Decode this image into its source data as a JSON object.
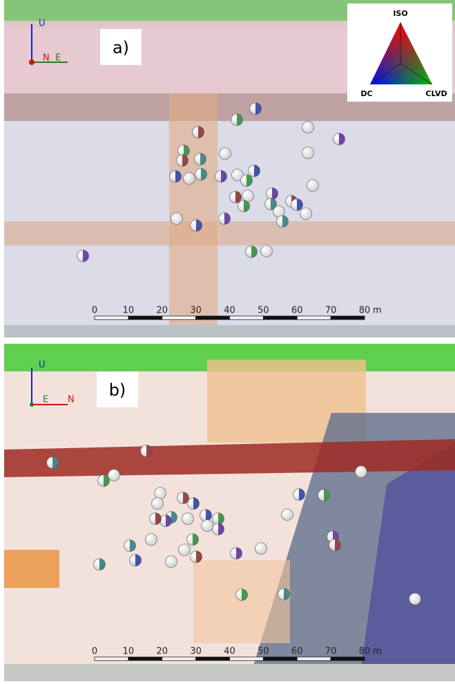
{
  "panels": [
    {
      "label": "a)",
      "axes": {
        "up": "U",
        "left": "N",
        "right": "E"
      },
      "legend": {
        "top": "ISO",
        "left": "DC",
        "right": "CLVD"
      },
      "scale_bar": {
        "ticks": [
          0,
          10,
          20,
          30,
          40,
          50,
          60,
          70,
          80
        ],
        "unit": "m"
      }
    },
    {
      "label": "b)",
      "axes": {
        "up": "U",
        "left": "E",
        "right": "N"
      },
      "scale_bar": {
        "ticks": [
          0,
          10,
          20,
          30,
          40,
          50,
          60,
          70,
          80
        ],
        "unit": "m"
      }
    }
  ]
}
